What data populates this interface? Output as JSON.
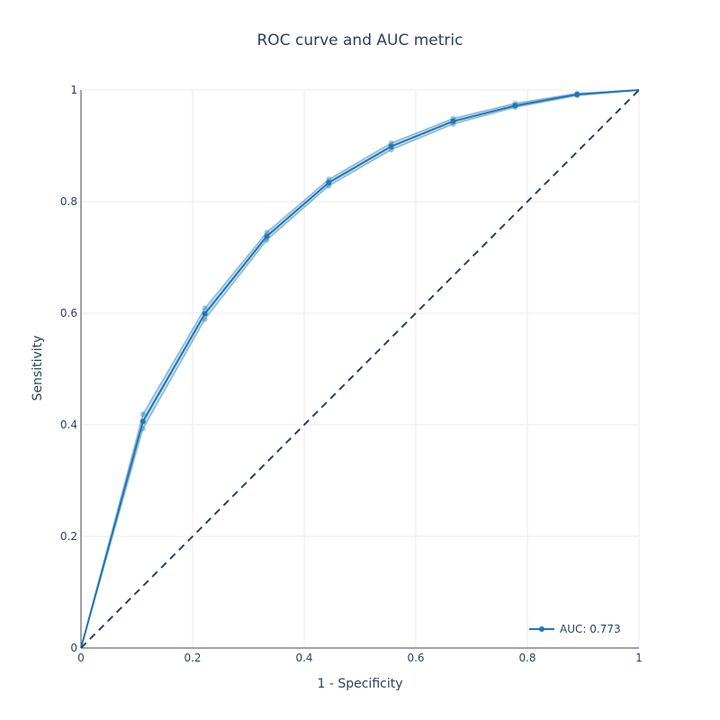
{
  "chart_data": {
    "type": "line",
    "title": "ROC curve and AUC metric",
    "xlabel": "1 - Specificity",
    "ylabel": "Sensitivity",
    "xlim": [
      0,
      1
    ],
    "ylim": [
      0,
      1
    ],
    "xticks": [
      "0",
      "0.2",
      "0.4",
      "0.6",
      "0.8",
      "1"
    ],
    "yticks": [
      "0",
      "0.2",
      "0.4",
      "0.6",
      "0.8",
      "1"
    ],
    "grid": true,
    "legend_position": "bottom-right",
    "series": [
      {
        "name": "AUC: 0.773",
        "color": "#1f77b4",
        "x": [
          0,
          0.111,
          0.222,
          0.333,
          0.444,
          0.556,
          0.667,
          0.778,
          0.889,
          1
        ],
        "y": [
          0,
          0.406,
          0.599,
          0.738,
          0.834,
          0.899,
          0.944,
          0.972,
          0.992,
          1
        ],
        "upper": [
          0,
          0.419,
          0.609,
          0.745,
          0.84,
          0.905,
          0.949,
          0.976,
          0.994,
          1
        ],
        "lower": [
          0,
          0.393,
          0.589,
          0.731,
          0.828,
          0.893,
          0.939,
          0.969,
          0.99,
          1
        ]
      },
      {
        "name": "",
        "color": "#2a3f5f",
        "dash": true,
        "x": [
          0,
          1
        ],
        "y": [
          0,
          1
        ]
      }
    ]
  }
}
